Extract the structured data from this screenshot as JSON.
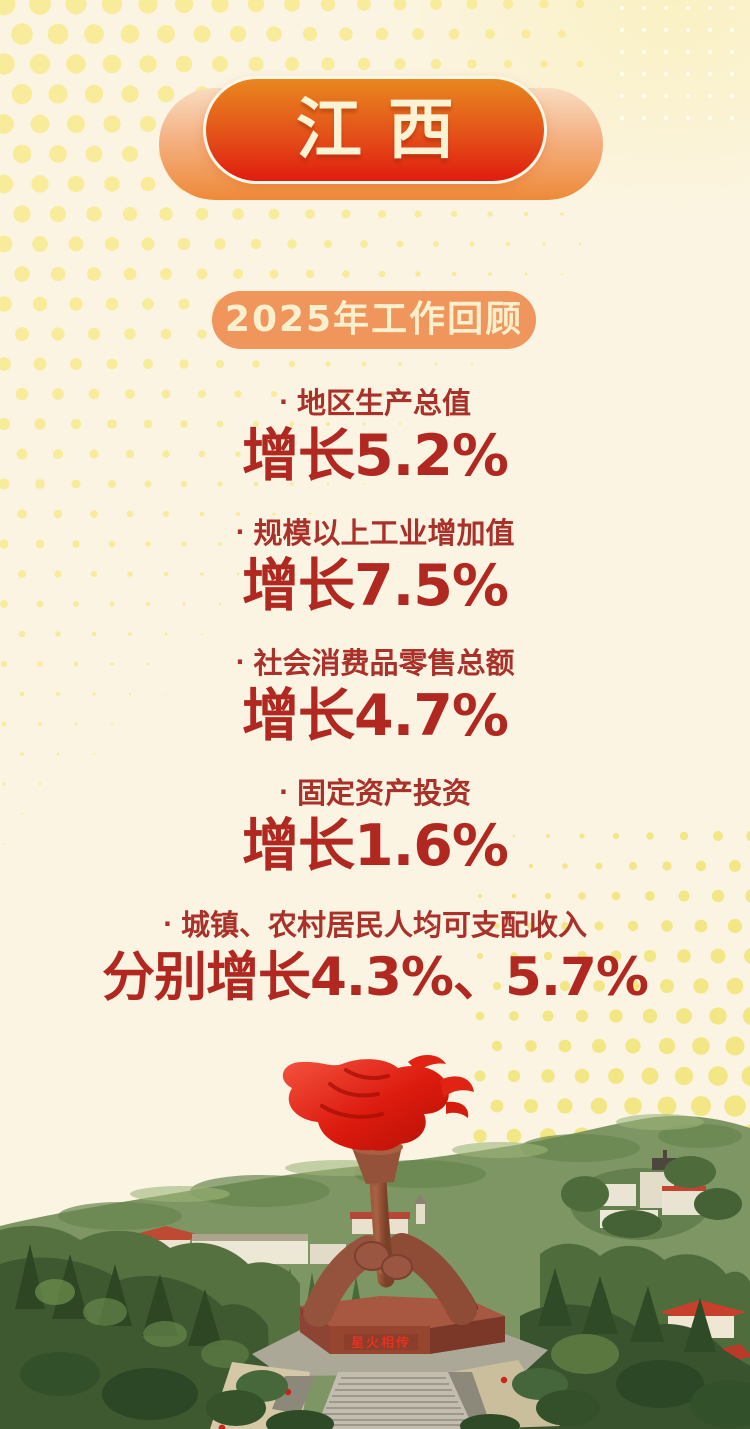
{
  "poster": {
    "region_badge": "江西",
    "section_badge": "2025年工作回顾",
    "bullet": "·",
    "stats": [
      {
        "label": "地区生产总值",
        "value": "增长5.2%"
      },
      {
        "label": "规模以上工业增加值",
        "value": "增长7.5%"
      },
      {
        "label": "社会消费品零售总额",
        "value": "增长4.7%"
      },
      {
        "label": "固定资产投资",
        "value": "增长1.6%"
      },
      {
        "label": "城镇、农村居民人均可支配收入",
        "value": "分别增长4.3%、5.7%"
      }
    ],
    "monument_inscription": "星火相传",
    "colors": {
      "background": "#FBF4E3",
      "dot_yellow_a": "#F8EC9B",
      "dot_yellow_b": "#F3E684",
      "dot_white": "#FFFEF4",
      "label_red": "#A93129",
      "value_red": "#B0281F",
      "badge_orange_top": "#E8871E",
      "badge_red_bottom": "#E01C0F",
      "section_badge_orange": "#F0955B",
      "flame_red": "#DC1A0E"
    }
  }
}
